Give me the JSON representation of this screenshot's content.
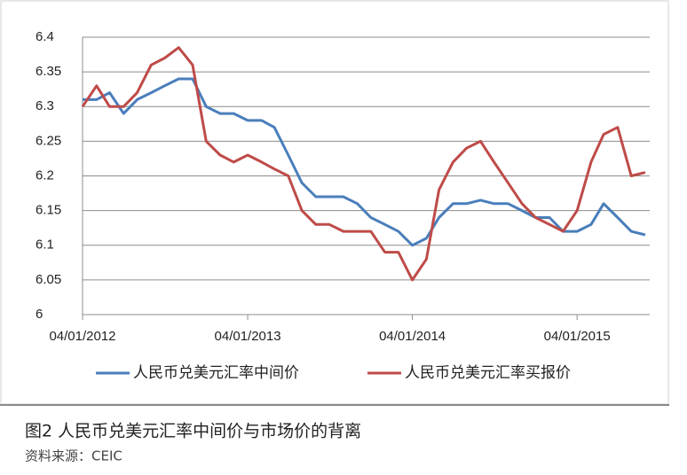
{
  "chart_data": {
    "type": "line",
    "caption": "图2 人民币兑美元汇率中间价与市场价的背离",
    "source": "资料来源：CEIC",
    "x": [
      "04/01/2012",
      "04/02/2012",
      "04/03/2012",
      "04/04/2012",
      "04/05/2012",
      "04/06/2012",
      "04/07/2012",
      "04/08/2012",
      "04/09/2012",
      "04/10/2012",
      "04/11/2012",
      "04/12/2012",
      "04/01/2013",
      "04/02/2013",
      "04/03/2013",
      "04/04/2013",
      "04/05/2013",
      "04/06/2013",
      "04/07/2013",
      "04/08/2013",
      "04/09/2013",
      "04/10/2013",
      "04/11/2013",
      "04/12/2013",
      "04/01/2014",
      "04/02/2014",
      "04/03/2014",
      "04/04/2014",
      "04/05/2014",
      "04/06/2014",
      "04/07/2014",
      "04/08/2014",
      "04/09/2014",
      "04/10/2014",
      "04/11/2014",
      "04/12/2014",
      "04/01/2015",
      "04/02/2015",
      "04/03/2015",
      "04/04/2015",
      "04/05/2015",
      "04/06/2015"
    ],
    "series": [
      {
        "name": "人民币兑美元汇率中间价",
        "color": "#4a7ebb",
        "values": [
          6.31,
          6.31,
          6.32,
          6.29,
          6.31,
          6.32,
          6.33,
          6.34,
          6.34,
          6.3,
          6.29,
          6.29,
          6.28,
          6.28,
          6.27,
          6.23,
          6.19,
          6.17,
          6.17,
          6.17,
          6.16,
          6.14,
          6.13,
          6.12,
          6.1,
          6.11,
          6.14,
          6.16,
          6.16,
          6.165,
          6.16,
          6.16,
          6.15,
          6.14,
          6.14,
          6.12,
          6.12,
          6.13,
          6.16,
          6.14,
          6.12,
          6.115
        ]
      },
      {
        "name": "人民币兑美元汇率买报价",
        "color": "#be4b48",
        "values": [
          6.3,
          6.33,
          6.3,
          6.3,
          6.32,
          6.36,
          6.37,
          6.385,
          6.36,
          6.25,
          6.23,
          6.22,
          6.23,
          6.22,
          6.21,
          6.2,
          6.15,
          6.13,
          6.13,
          6.12,
          6.12,
          6.12,
          6.09,
          6.09,
          6.05,
          6.08,
          6.18,
          6.22,
          6.24,
          6.25,
          6.22,
          6.19,
          6.16,
          6.14,
          6.13,
          6.12,
          6.15,
          6.22,
          6.26,
          6.27,
          6.2,
          6.205
        ]
      }
    ],
    "xlim": [
      "04/01/2012",
      "14/06/2015"
    ],
    "xticks": [
      "04/01/2012",
      "04/01/2013",
      "04/01/2014",
      "04/01/2015"
    ],
    "ylim": [
      6,
      6.4
    ],
    "yticks": [
      6.4,
      6.35,
      6.3,
      6.25,
      6.2,
      6.15,
      6.1,
      6.05,
      6
    ],
    "grid": true
  }
}
